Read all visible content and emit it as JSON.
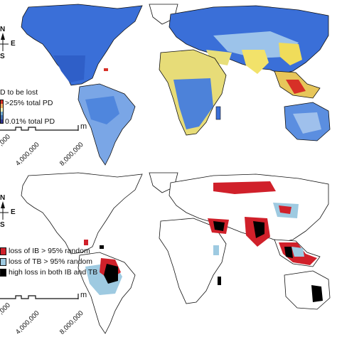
{
  "top_map": {
    "compass": {
      "north": "N",
      "east": "E",
      "south": "S"
    },
    "legend": {
      "title": "D to be lost",
      "items": [
        {
          "label": ">25% total PD",
          "colors": [
            "#d73027",
            "#fdae61",
            "#ffffbf"
          ]
        },
        {
          "label": "0.01% total PD",
          "colors": [
            "#74add1",
            "#4575b4",
            "#313695"
          ]
        }
      ]
    },
    "scale": {
      "ticks": [
        ",000",
        "4,000,000",
        "8,000,000"
      ],
      "unit": "m"
    },
    "colors": {
      "land_low": "#3a6fd8",
      "land_mid": "#8fb4e8",
      "land_high": "#f7e66a",
      "land_peak": "#d73027"
    }
  },
  "bottom_map": {
    "compass": {
      "north": "N",
      "east": "E",
      "south": "S"
    },
    "legend": {
      "items": [
        {
          "label": "loss of IB > 95% random",
          "color": "#d0202a"
        },
        {
          "label": "loss of TB > 95% random",
          "color": "#9ecae1"
        },
        {
          "label": "high loss in both IB and TB",
          "color": "#000000"
        }
      ]
    },
    "scale": {
      "ticks": [
        ",000",
        "4,000,000",
        "8,000,000"
      ],
      "unit": "m"
    }
  }
}
